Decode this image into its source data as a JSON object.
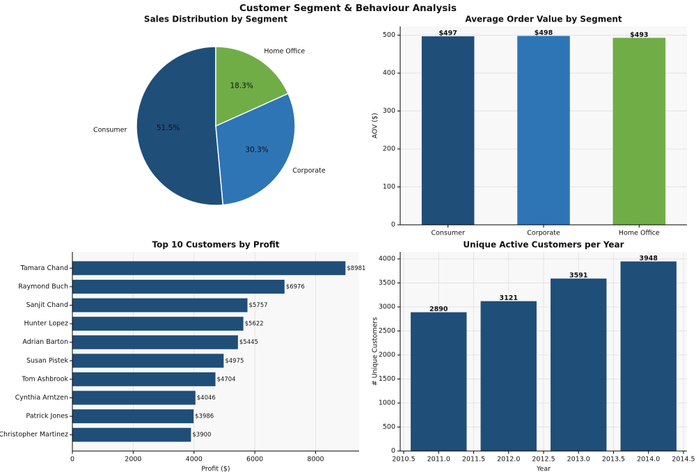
{
  "title": "Customer Segment & Behaviour Analysis",
  "chart_data": [
    {
      "type": "pie",
      "title": "Sales Distribution by Segment",
      "categories": [
        "Consumer",
        "Corporate",
        "Home Office"
      ],
      "values": [
        51.5,
        30.3,
        18.3
      ],
      "value_labels": [
        "51.5%",
        "30.3%",
        "18.3%"
      ],
      "colors": [
        "#1f4e79",
        "#2e75b6",
        "#70ad47"
      ]
    },
    {
      "type": "bar",
      "title": "Average Order Value by Segment",
      "categories": [
        "Consumer",
        "Corporate",
        "Home Office"
      ],
      "values": [
        497,
        498,
        493
      ],
      "value_labels": [
        "$497",
        "$498",
        "$493"
      ],
      "colors": [
        "#1f4e79",
        "#2e75b6",
        "#70ad47"
      ],
      "ylabel": "AOV ($)",
      "ylim": [
        0,
        523
      ],
      "yticks": [
        0,
        100,
        200,
        300,
        400,
        500
      ],
      "grid": true
    },
    {
      "type": "barh",
      "title": "Top 10 Customers by Profit",
      "categories": [
        "Tamara Chand",
        "Raymond Buch",
        "Sanjit Chand",
        "Hunter Lopez",
        "Adrian Barton",
        "Susan Pistek",
        "Tom Ashbrook",
        "Cynthia Arntzen",
        "Patrick Jones",
        "Christopher Martinez"
      ],
      "values": [
        8981,
        6976,
        5757,
        5622,
        5445,
        4975,
        4704,
        4046,
        3986,
        3900
      ],
      "value_labels": [
        "$8981",
        "$6976",
        "$5757",
        "$5622",
        "$5445",
        "$4975",
        "$4704",
        "$4046",
        "$3986",
        "$3900"
      ],
      "color": "#1f4e79",
      "xlabel": "Profit ($)",
      "xlim": [
        0,
        9430
      ],
      "xticks": [
        0,
        2000,
        4000,
        6000,
        8000
      ],
      "grid": true
    },
    {
      "type": "bar",
      "title": "Unique Active Customers per Year",
      "x": [
        2011,
        2012,
        2013,
        2014
      ],
      "values": [
        2890,
        3121,
        3591,
        3948
      ],
      "color": "#1f4e79",
      "xlabel": "Year",
      "ylabel": "# Unique Customers",
      "xlim": [
        2010.45,
        2014.55
      ],
      "xticks": [
        2010.5,
        {
          "value": 2011,
          "label": "2011.0"
        },
        2011.5,
        {
          "value": 2012,
          "label": "2012.0"
        },
        2012.5,
        {
          "value": 2013,
          "label": "2013.0"
        },
        2013.5,
        {
          "value": 2014,
          "label": "2014.0"
        },
        2014.5
      ],
      "ylim": [
        0,
        4145
      ],
      "yticks": [
        0,
        500,
        1000,
        1500,
        2000,
        2500,
        3000,
        3500,
        4000
      ],
      "grid": true
    }
  ]
}
